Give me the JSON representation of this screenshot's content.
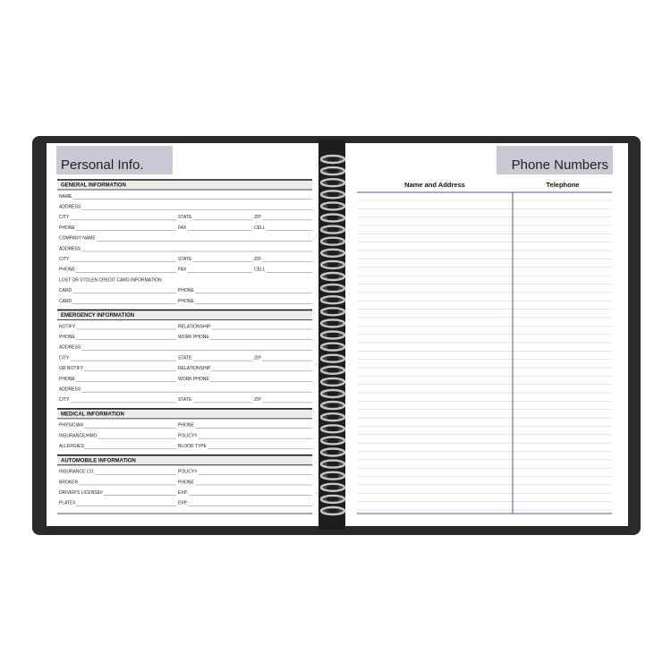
{
  "left_page": {
    "title": "Personal Info.",
    "sections": [
      {
        "title": "GENERAL INFORMATION",
        "rows": [
          [
            "NAME"
          ],
          [
            "ADDRESS"
          ],
          [
            "CITY",
            "STATE",
            "ZIP"
          ],
          [
            "PHONE",
            "FAX",
            "CELL"
          ],
          [
            "COMPANY NAME"
          ],
          [
            "ADDRESS"
          ],
          [
            "CITY",
            "STATE",
            "ZIP"
          ],
          [
            "PHONE",
            "FAX",
            "CELL"
          ],
          [
            "LOST OR STOLEN CREDIT CARD INFORMATION"
          ],
          [
            "CARD",
            "PHONE"
          ],
          [
            "CARD",
            "PHONE"
          ]
        ]
      },
      {
        "title": "EMERGENCY INFORMATION",
        "rows": [
          [
            "NOTIFY",
            "RELATIONSHIP"
          ],
          [
            "PHONE",
            "WORK PHONE"
          ],
          [
            "ADDRESS"
          ],
          [
            "CITY",
            "STATE",
            "ZIP"
          ],
          [
            "OR NOTIFY",
            "RELATIONSHIP"
          ],
          [
            "PHONE",
            "WORK PHONE"
          ],
          [
            "ADDRESS"
          ],
          [
            "CITY",
            "STATE",
            "ZIP"
          ]
        ]
      },
      {
        "title": "MEDICAL INFORMATION",
        "rows": [
          [
            "PHYSICIAN",
            "PHONE"
          ],
          [
            "INSURANCE/HMO",
            "POLICY#"
          ],
          [
            "ALLERGIES",
            "BLOOD TYPE"
          ]
        ]
      },
      {
        "title": "AUTOMOBILE INFORMATION",
        "rows": [
          [
            "INSURANCE CO.",
            "POLICY#"
          ],
          [
            "BROKER",
            "PHONE"
          ],
          [
            "DRIVER'S LICENSE#",
            "EXP."
          ],
          [
            "PLATE#",
            "EXP."
          ]
        ]
      }
    ]
  },
  "right_page": {
    "title": "Phone Numbers",
    "columns": [
      "Name and Address",
      "Telephone"
    ]
  }
}
